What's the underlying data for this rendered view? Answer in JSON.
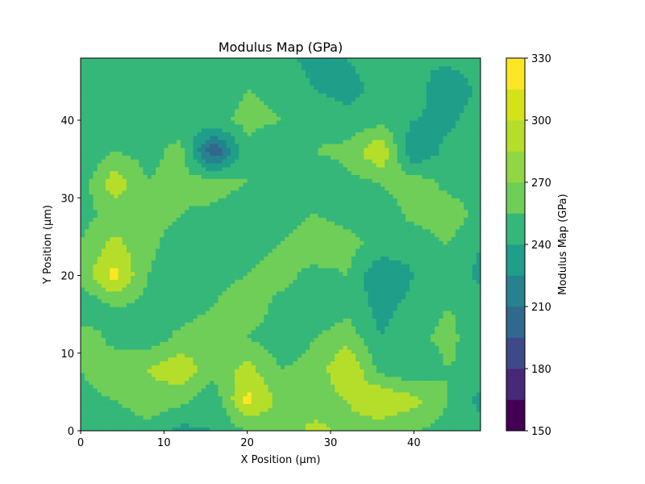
{
  "chart_data": {
    "type": "heatmap",
    "subtype": "filled-contour",
    "title": "Modulus Map (GPa)",
    "xlabel": "X Position (μm)",
    "ylabel": "Y Position (μm)",
    "xlim": [
      0,
      48
    ],
    "ylim": [
      0,
      48
    ],
    "x_ticks": [
      0,
      10,
      20,
      30,
      40
    ],
    "y_ticks": [
      0,
      10,
      20,
      30,
      40
    ],
    "grid": false,
    "colormap": "viridis",
    "colorbar": {
      "label": "Modulus Map (GPa)",
      "range": [
        150,
        330
      ],
      "levels": [
        150,
        165,
        180,
        195,
        210,
        225,
        240,
        255,
        270,
        285,
        300,
        315,
        330
      ],
      "ticks": [
        150,
        180,
        210,
        240,
        270,
        300,
        330
      ],
      "colors": [
        "#440154",
        "#482878",
        "#3e4989",
        "#31688e",
        "#26828e",
        "#1f9e89",
        "#35b779",
        "#6ece58",
        "#b5de2b",
        "#fde725",
        "#fde725",
        "#fde725"
      ]
    },
    "grid_x": [
      0,
      4,
      8,
      12,
      16,
      20,
      24,
      28,
      32,
      36,
      40,
      44,
      48
    ],
    "grid_y": [
      0,
      4,
      8,
      12,
      16,
      20,
      24,
      28,
      32,
      36,
      40,
      44,
      48
    ],
    "z": [
      [
        245,
        240,
        250,
        235,
        240,
        255,
        260,
        275,
        265,
        260,
        255,
        250,
        245
      ],
      [
        250,
        255,
        265,
        260,
        245,
        290,
        265,
        260,
        270,
        285,
        275,
        255,
        235
      ],
      [
        255,
        265,
        270,
        280,
        260,
        275,
        255,
        260,
        285,
        250,
        240,
        255,
        250
      ],
      [
        265,
        250,
        245,
        260,
        270,
        255,
        245,
        255,
        265,
        240,
        250,
        260,
        245
      ],
      [
        240,
        255,
        250,
        245,
        255,
        265,
        250,
        240,
        250,
        235,
        245,
        255,
        250
      ],
      [
        260,
        290,
        255,
        240,
        250,
        255,
        260,
        250,
        255,
        225,
        240,
        250,
        235
      ],
      [
        255,
        275,
        260,
        245,
        240,
        250,
        255,
        265,
        260,
        250,
        245,
        255,
        240
      ],
      [
        250,
        260,
        265,
        255,
        250,
        240,
        245,
        255,
        250,
        245,
        260,
        265,
        250
      ],
      [
        245,
        280,
        255,
        260,
        265,
        255,
        245,
        240,
        250,
        255,
        265,
        250,
        245
      ],
      [
        240,
        255,
        250,
        260,
        195,
        250,
        240,
        255,
        260,
        285,
        225,
        245,
        255
      ],
      [
        245,
        240,
        255,
        245,
        250,
        260,
        255,
        250,
        245,
        250,
        240,
        235,
        250
      ],
      [
        250,
        245,
        240,
        250,
        245,
        255,
        250,
        240,
        235,
        245,
        250,
        225,
        245
      ],
      [
        240,
        245,
        250,
        245,
        240,
        250,
        245,
        235,
        240,
        245,
        240,
        245,
        250
      ]
    ]
  }
}
